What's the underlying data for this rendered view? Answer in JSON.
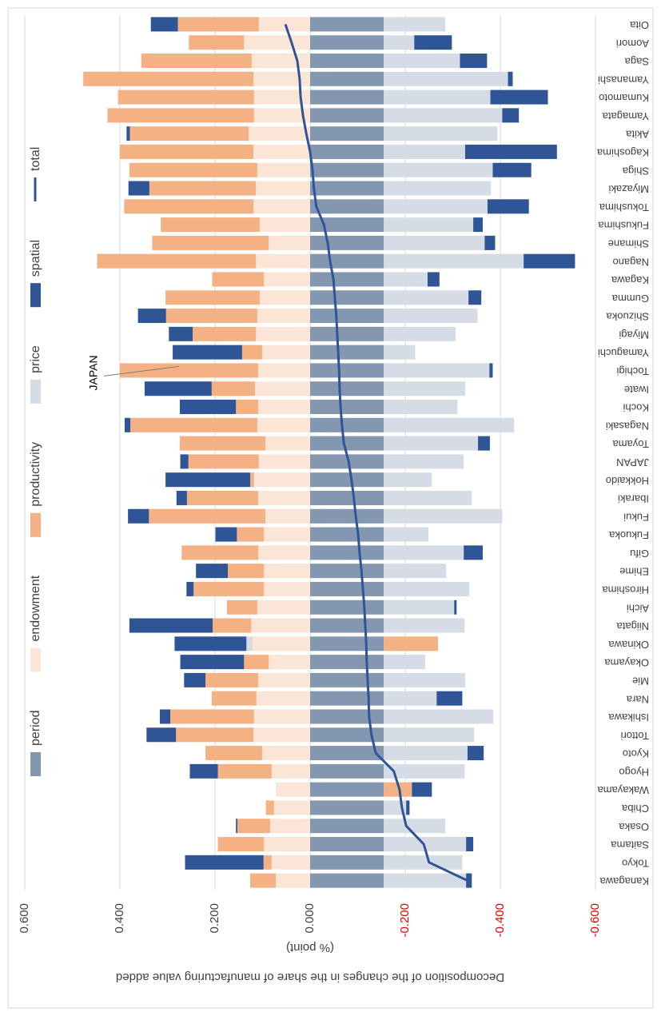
{
  "chart_data": {
    "type": "bar",
    "stacked": true,
    "orientation": "rotated",
    "y_label": "Decomposition of the changes in the share of manufacturing value added",
    "y_unit": "(% point)",
    "annotation": "JAPAN",
    "legend": "top",
    "grid": true,
    "negative_tick_color": "#e00000",
    "categories": [
      "Kanagawa",
      "Tokyo",
      "Saitama",
      "Osaka",
      "Chiba",
      "Wakayama",
      "Hyogo",
      "Kyoto",
      "Tottori",
      "Ishikawa",
      "Nara",
      "Mie",
      "Okayama",
      "Okinawa",
      "Niigata",
      "Aichi",
      "Hiroshima",
      "Ehime",
      "Gifu",
      "Fukuoka",
      "Fukui",
      "Ibaraki",
      "Hokkaido",
      "JAPAN",
      "Toyama",
      "Nagasaki",
      "Kochi",
      "Iwate",
      "Tochigi",
      "Yamaguchi",
      "Miyagi",
      "Shizuoka",
      "Gumma",
      "Kagawa",
      "Nagano",
      "Shimane",
      "Fukushima",
      "Tokushima",
      "Miyazaki",
      "Shiga",
      "Kagoshima",
      "Akita",
      "Yamagata",
      "Kumamoto",
      "Yamanashi",
      "Saga",
      "Aomori",
      "Oita"
    ],
    "ylim": [
      -0.6,
      0.6
    ],
    "yticks": [
      {
        "value": 0.6,
        "label": "0.600"
      },
      {
        "value": 0.4,
        "label": "0.400"
      },
      {
        "value": 0.2,
        "label": "0.200"
      },
      {
        "value": 0,
        "label": "0.000"
      },
      {
        "value": -0.2,
        "label": "-0.200"
      },
      {
        "value": -0.4,
        "label": "-0.400"
      },
      {
        "value": -0.6,
        "label": "-0.600"
      }
    ],
    "series": [
      {
        "name": "period",
        "color": "#8497b0",
        "values": [
          -0.155,
          -0.155,
          -0.155,
          -0.155,
          -0.155,
          -0.155,
          -0.155,
          -0.155,
          -0.155,
          -0.155,
          -0.155,
          -0.155,
          -0.155,
          -0.155,
          -0.155,
          -0.155,
          -0.155,
          -0.155,
          -0.155,
          -0.155,
          -0.155,
          -0.155,
          -0.155,
          -0.155,
          -0.155,
          -0.155,
          -0.155,
          -0.155,
          -0.155,
          -0.155,
          -0.155,
          -0.155,
          -0.155,
          -0.155,
          -0.155,
          -0.155,
          -0.155,
          -0.155,
          -0.155,
          -0.155,
          -0.155,
          -0.155,
          -0.155,
          -0.155,
          -0.155,
          -0.155,
          -0.155,
          -0.155
        ]
      },
      {
        "name": "endowment",
        "color": "#fbe5d6",
        "values": [
          0.072,
          0.081,
          0.097,
          0.084,
          0.076,
          0.072,
          0.081,
          0.101,
          0.119,
          0.118,
          0.113,
          0.109,
          0.087,
          0.121,
          0.124,
          0.111,
          0.097,
          0.097,
          0.109,
          0.097,
          0.094,
          0.109,
          0.118,
          0.108,
          0.094,
          0.111,
          0.109,
          0.116,
          0.109,
          0.101,
          0.114,
          0.111,
          0.106,
          0.097,
          0.114,
          0.087,
          0.106,
          0.119,
          0.114,
          0.111,
          0.119,
          0.129,
          0.118,
          0.118,
          0.119,
          0.123,
          0.139,
          0.108
        ]
      },
      {
        "name": "productivity",
        "color": "#f4b183",
        "values": [
          0.054,
          0.017,
          0.097,
          0.069,
          0.017,
          -0.059,
          0.113,
          0.119,
          0.163,
          0.176,
          0.094,
          0.111,
          0.052,
          -0.114,
          0.081,
          0.064,
          0.148,
          0.076,
          0.161,
          0.057,
          0.245,
          0.15,
          0.008,
          0.148,
          0.18,
          0.267,
          0.047,
          0.091,
          0.291,
          0.042,
          0.133,
          0.192,
          0.198,
          0.109,
          0.334,
          0.245,
          0.208,
          0.272,
          0.224,
          0.269,
          0.281,
          0.25,
          0.308,
          0.286,
          0.358,
          0.232,
          0.116,
          0.17
        ]
      },
      {
        "name": "price",
        "color": "#d6dce5",
        "values": [
          -0.173,
          -0.165,
          -0.173,
          -0.129,
          -0.047,
          0,
          -0.17,
          -0.176,
          -0.19,
          -0.23,
          -0.111,
          -0.171,
          -0.087,
          0.013,
          -0.17,
          -0.148,
          -0.18,
          -0.131,
          -0.168,
          -0.094,
          -0.249,
          -0.185,
          -0.101,
          -0.168,
          -0.198,
          -0.274,
          -0.155,
          -0.171,
          -0.222,
          -0.066,
          -0.151,
          -0.197,
          -0.178,
          -0.092,
          -0.294,
          -0.212,
          -0.188,
          -0.218,
          -0.225,
          -0.229,
          -0.171,
          -0.239,
          -0.249,
          -0.224,
          -0.261,
          -0.16,
          -0.064,
          -0.129
        ]
      },
      {
        "name": "spatial",
        "color": "#2f5597",
        "values": [
          -0.012,
          0.165,
          -0.015,
          0.003,
          -0.007,
          -0.042,
          0.059,
          -0.034,
          0.062,
          0.022,
          -0.054,
          0.045,
          0.134,
          0.151,
          0.175,
          -0.005,
          0.015,
          0.067,
          -0.04,
          0.045,
          0.044,
          0.022,
          0.178,
          0.017,
          -0.025,
          0.012,
          0.118,
          0.141,
          -0.007,
          0.146,
          0.05,
          0.059,
          -0.027,
          -0.025,
          -0.108,
          -0.022,
          -0.02,
          -0.087,
          0.044,
          -0.081,
          -0.193,
          0.007,
          -0.035,
          -0.121,
          -0.01,
          -0.057,
          -0.079,
          0.057
        ]
      },
      {
        "name": "total",
        "type": "line",
        "color": "#2f5597",
        "values": [
          -0.331,
          -0.25,
          -0.239,
          -0.202,
          -0.193,
          -0.188,
          -0.176,
          -0.138,
          -0.129,
          -0.124,
          -0.123,
          -0.121,
          -0.119,
          -0.118,
          -0.116,
          -0.114,
          -0.111,
          -0.108,
          -0.104,
          -0.101,
          -0.096,
          -0.092,
          -0.087,
          -0.081,
          -0.071,
          -0.067,
          -0.064,
          -0.062,
          -0.061,
          -0.059,
          -0.057,
          -0.055,
          -0.052,
          -0.049,
          -0.042,
          -0.037,
          -0.029,
          -0.013,
          -0.008,
          -0.005,
          0,
          0.008,
          0.015,
          0.02,
          0.022,
          0.027,
          0.039,
          0.052
        ]
      }
    ]
  }
}
